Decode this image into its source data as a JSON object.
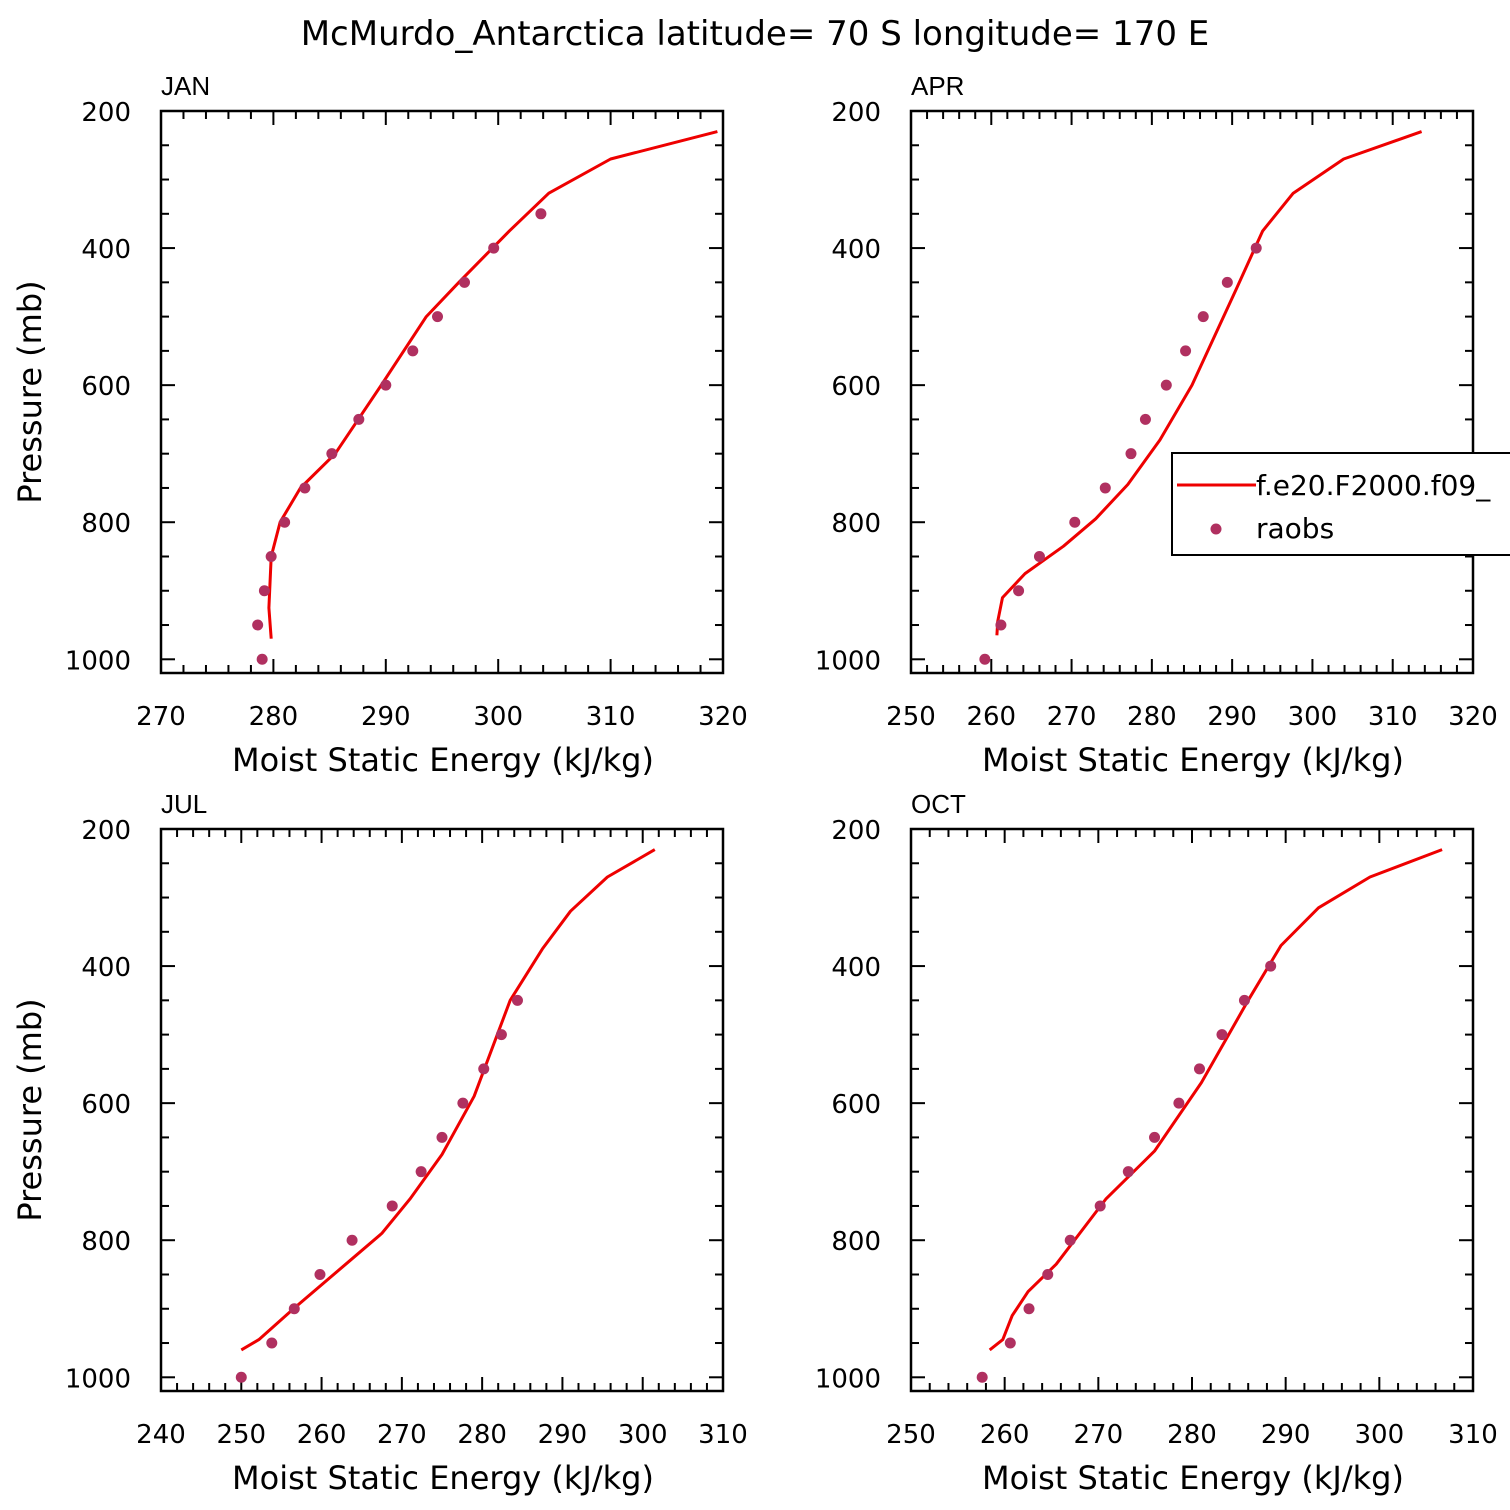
{
  "title": "McMurdo_Antarctica  latitude= 70 S longitude= 170 E",
  "legend": {
    "line_label": "f.e20.F2000.f09_",
    "marker_label": "raobs",
    "panel": "APR"
  },
  "colors": {
    "model_line": "#ee0000",
    "raobs_marker": "#b03060",
    "axis": "#000000"
  },
  "chart_data": [
    {
      "type": "line",
      "month": "JAN",
      "xlabel": "Moist Static Energy (kJ/kg)",
      "ylabel": "Pressure (mb)",
      "xlim": [
        270,
        320
      ],
      "ylim": [
        1020,
        200
      ],
      "xticks": [
        270,
        280,
        290,
        300,
        310,
        320
      ],
      "yticks": [
        200,
        400,
        600,
        800,
        1000
      ],
      "series": [
        {
          "kind": "line",
          "x": [
            279.8,
            279.6,
            279.8,
            280.6,
            282.4,
            285.5,
            289.6,
            293.6,
            296.5,
            301.0,
            304.5,
            310.0,
            319.5
          ],
          "y": [
            970,
            925,
            850,
            800,
            750,
            700,
            600,
            500,
            450,
            375,
            320,
            270,
            230
          ]
        },
        {
          "kind": "scatter",
          "x": [
            279.0,
            278.6,
            279.2,
            279.8,
            281.0,
            282.8,
            285.2,
            287.6,
            290.0,
            292.4,
            294.6,
            297.0,
            299.6,
            303.8
          ],
          "y": [
            1000,
            950,
            900,
            850,
            800,
            750,
            700,
            650,
            600,
            550,
            500,
            450,
            400,
            350
          ]
        }
      ]
    },
    {
      "type": "line",
      "month": "APR",
      "xlabel": "Moist Static Energy (kJ/kg)",
      "ylabel": "",
      "xlim": [
        250,
        320
      ],
      "ylim": [
        1020,
        200
      ],
      "xticks": [
        250,
        260,
        270,
        280,
        290,
        300,
        310,
        320
      ],
      "yticks": [
        200,
        400,
        600,
        800,
        1000
      ],
      "series": [
        {
          "kind": "line",
          "x": [
            260.7,
            260.8,
            261.4,
            264.2,
            269.0,
            273.0,
            277.0,
            281.0,
            285.0,
            290.5,
            293.8,
            297.6,
            303.9,
            313.6
          ],
          "y": [
            965,
            945,
            910,
            875,
            835,
            795,
            745,
            680,
            600,
            460,
            375,
            320,
            270,
            230
          ]
        },
        {
          "kind": "scatter",
          "x": [
            259.2,
            261.2,
            263.4,
            266.0,
            270.4,
            274.2,
            277.4,
            279.2,
            281.8,
            284.2,
            286.4,
            289.4,
            293.0
          ],
          "y": [
            1000,
            950,
            900,
            850,
            800,
            750,
            700,
            650,
            600,
            550,
            500,
            450,
            400
          ]
        }
      ]
    },
    {
      "type": "line",
      "month": "JUL",
      "xlabel": "Moist Static Energy (kJ/kg)",
      "ylabel": "Pressure (mb)",
      "xlim": [
        240,
        310
      ],
      "ylim": [
        1020,
        200
      ],
      "xticks": [
        240,
        250,
        260,
        270,
        280,
        290,
        300,
        310
      ],
      "yticks": [
        200,
        400,
        600,
        800,
        1000
      ],
      "series": [
        {
          "kind": "line",
          "x": [
            250.0,
            252.2,
            256.5,
            263.5,
            267.5,
            271.0,
            275.0,
            279.0,
            283.5,
            287.5,
            291.0,
            295.6,
            301.5
          ],
          "y": [
            960,
            945,
            900,
            830,
            790,
            740,
            675,
            590,
            450,
            375,
            320,
            270,
            230
          ]
        },
        {
          "kind": "scatter",
          "x": [
            250.0,
            253.8,
            256.6,
            259.8,
            263.8,
            268.8,
            272.4,
            275.0,
            277.6,
            280.2,
            282.4,
            284.4
          ],
          "y": [
            1000,
            950,
            900,
            850,
            800,
            750,
            700,
            650,
            600,
            550,
            500,
            450
          ]
        }
      ]
    },
    {
      "type": "line",
      "month": "OCT",
      "xlabel": "Moist Static Energy (kJ/kg)",
      "ylabel": "",
      "xlim": [
        250,
        310
      ],
      "ylim": [
        1020,
        200
      ],
      "xticks": [
        250,
        260,
        270,
        280,
        290,
        300,
        310
      ],
      "yticks": [
        200,
        400,
        600,
        800,
        1000
      ],
      "series": [
        {
          "kind": "line",
          "x": [
            258.4,
            259.8,
            260.8,
            262.5,
            265.5,
            270.8,
            276.0,
            281.0,
            286.0,
            289.5,
            293.5,
            299.0,
            306.7
          ],
          "y": [
            960,
            945,
            910,
            875,
            835,
            740,
            670,
            570,
            450,
            370,
            315,
            270,
            230
          ]
        },
        {
          "kind": "scatter",
          "x": [
            257.6,
            260.6,
            262.6,
            264.6,
            267.0,
            270.2,
            273.2,
            276.0,
            278.6,
            280.8,
            283.2,
            285.6,
            288.4
          ],
          "y": [
            1000,
            950,
            900,
            850,
            800,
            750,
            700,
            650,
            600,
            550,
            500,
            450,
            400
          ]
        }
      ]
    }
  ]
}
